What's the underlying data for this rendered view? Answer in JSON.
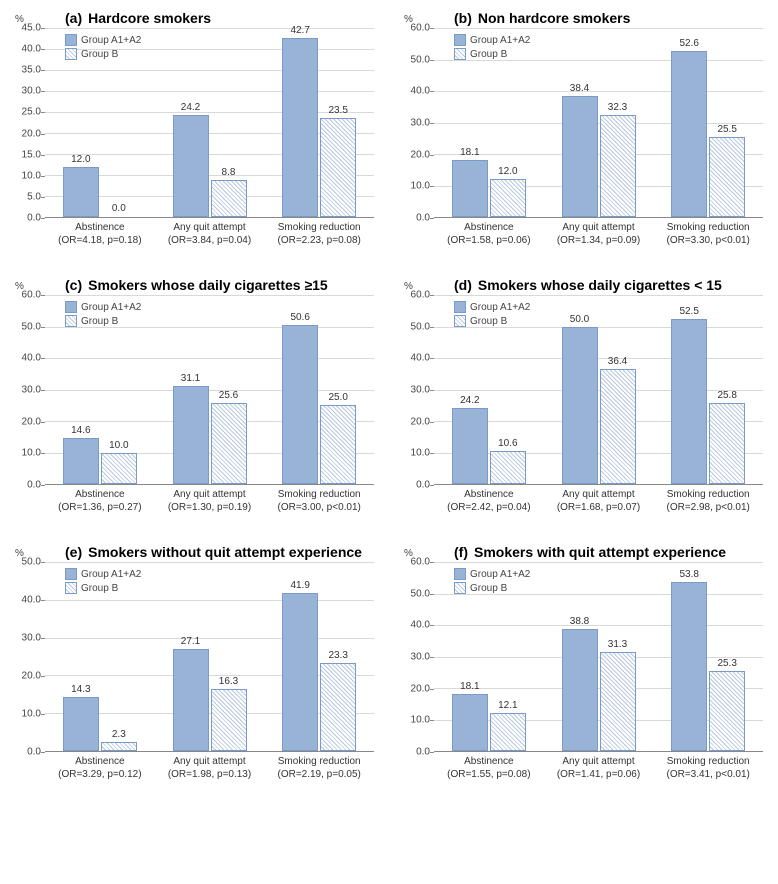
{
  "colors": {
    "bar_a": "#99b3d6",
    "bar_b_pattern_light": "#ffffff",
    "bar_b_pattern_dark": "#b8c9e0",
    "bar_border": "#7a9ac9",
    "gridline": "#d9d9d9",
    "axis": "#888888",
    "background": "#ffffff",
    "text": "#333333"
  },
  "legend": {
    "a": "Group A1+A2",
    "b": "Group B"
  },
  "y_unit": "%",
  "font_family": "Arial",
  "title_fontsize": 14,
  "tick_fontsize": 10,
  "value_label_fontsize": 10,
  "panels": [
    {
      "id": "a",
      "title_prefix": "(a)",
      "title": "Hardcore smokers",
      "ymax": 45,
      "ystep": 5,
      "categories": [
        {
          "name": "Abstinence",
          "stat": "(OR=4.18, p=0.18)",
          "a": 12.0,
          "b": 0.0
        },
        {
          "name": "Any quit attempt",
          "stat": "(OR=3.84, p=0.04)",
          "a": 24.2,
          "b": 8.8
        },
        {
          "name": "Smoking reduction",
          "stat": "(OR=2.23, p=0.08)",
          "a": 42.7,
          "b": 23.5
        }
      ]
    },
    {
      "id": "b",
      "title_prefix": "(b)",
      "title": "Non hardcore smokers",
      "ymax": 60,
      "ystep": 10,
      "categories": [
        {
          "name": "Abstinence",
          "stat": "(OR=1.58, p=0.06)",
          "a": 18.1,
          "b": 12.0
        },
        {
          "name": "Any quit attempt",
          "stat": "(OR=1.34, p=0.09)",
          "a": 38.4,
          "b": 32.3
        },
        {
          "name": "Smoking reduction",
          "stat": "(OR=3.30, p<0.01)",
          "a": 52.6,
          "b": 25.5
        }
      ]
    },
    {
      "id": "c",
      "title_prefix": "(c)",
      "title": "Smokers whose daily cigarettes ≥15",
      "ymax": 60,
      "ystep": 10,
      "categories": [
        {
          "name": "Abstinence",
          "stat": "(OR=1.36, p=0.27)",
          "a": 14.6,
          "b": 10.0
        },
        {
          "name": "Any quit attempt",
          "stat": "(OR=1.30, p=0.19)",
          "a": 31.1,
          "b": 25.6
        },
        {
          "name": "Smoking reduction",
          "stat": "(OR=3.00, p<0.01)",
          "a": 50.6,
          "b": 25.0
        }
      ]
    },
    {
      "id": "d",
      "title_prefix": "(d)",
      "title": "Smokers whose daily cigarettes < 15",
      "ymax": 60,
      "ystep": 10,
      "categories": [
        {
          "name": "Abstinence",
          "stat": "(OR=2.42, p=0.04)",
          "a": 24.2,
          "b": 10.6
        },
        {
          "name": "Any quit attempt",
          "stat": "(OR=1.68, p=0.07)",
          "a": 50.0,
          "b": 36.4
        },
        {
          "name": "Smoking reduction",
          "stat": "(OR=2.98, p<0.01)",
          "a": 52.5,
          "b": 25.8
        }
      ]
    },
    {
      "id": "e",
      "title_prefix": "(e)",
      "title": "Smokers without quit attempt  experience",
      "ymax": 50,
      "ystep": 10,
      "categories": [
        {
          "name": "Abstinence",
          "stat": "(OR=3.29, p=0.12)",
          "a": 14.3,
          "b": 2.3
        },
        {
          "name": "Any quit attempt",
          "stat": "(OR=1.98, p=0.13)",
          "a": 27.1,
          "b": 16.3
        },
        {
          "name": "Smoking reduction",
          "stat": "(OR=2.19, p=0.05)",
          "a": 41.9,
          "b": 23.3
        }
      ]
    },
    {
      "id": "f",
      "title_prefix": "(f)",
      "title": "Smokers with quit attempt experience",
      "ymax": 60,
      "ystep": 10,
      "categories": [
        {
          "name": "Abstinence",
          "stat": "(OR=1.55, p=0.08)",
          "a": 18.1,
          "b": 12.1
        },
        {
          "name": "Any quit attempt",
          "stat": "(OR=1.41, p=0.06)",
          "a": 38.8,
          "b": 31.3
        },
        {
          "name": "Smoking reduction",
          "stat": "(OR=3.41, p<0.01)",
          "a": 53.8,
          "b": 25.3
        }
      ]
    }
  ]
}
